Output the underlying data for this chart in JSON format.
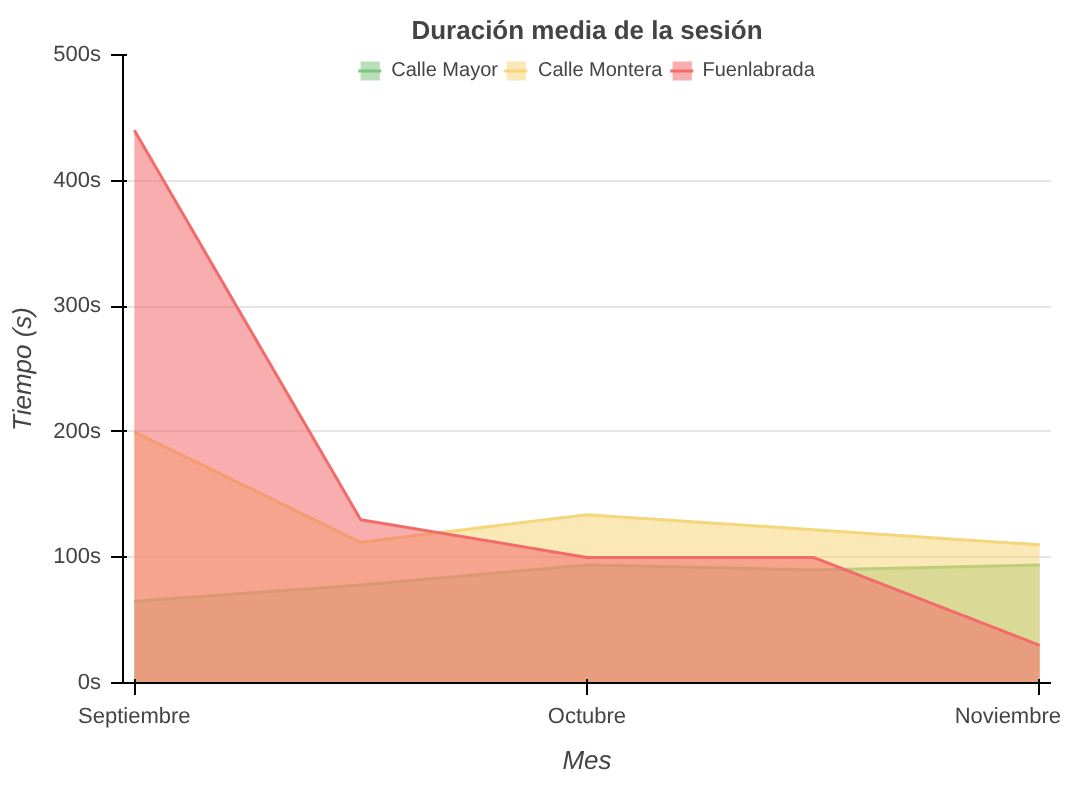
{
  "chart_data": {
    "type": "area",
    "title": "Duración media de la sesión",
    "xlabel": "Mes",
    "ylabel": "Tiempo (s)",
    "categories": [
      "Septiembre",
      null,
      "Octubre",
      null,
      "Noviembre"
    ],
    "series": [
      {
        "name": "Calle Mayor",
        "color": "#7dc47d",
        "values": [
          65,
          78,
          94,
          90,
          94
        ]
      },
      {
        "name": "Calle Montera",
        "color": "#f5d67a",
        "values": [
          200,
          112,
          134,
          122,
          110
        ]
      },
      {
        "name": "Fuenlabrada",
        "color": "#f26b6b",
        "values": [
          440,
          130,
          100,
          100,
          30
        ]
      }
    ],
    "ylim": [
      0,
      500
    ],
    "yticks": [
      {
        "value": 0,
        "label": "0s"
      },
      {
        "value": 100,
        "label": "100s"
      },
      {
        "value": 200,
        "label": "200s"
      },
      {
        "value": 300,
        "label": "300s"
      },
      {
        "value": 400,
        "label": "400s"
      },
      {
        "value": 500,
        "label": "500s"
      }
    ],
    "grid": "y",
    "legend": "top"
  }
}
